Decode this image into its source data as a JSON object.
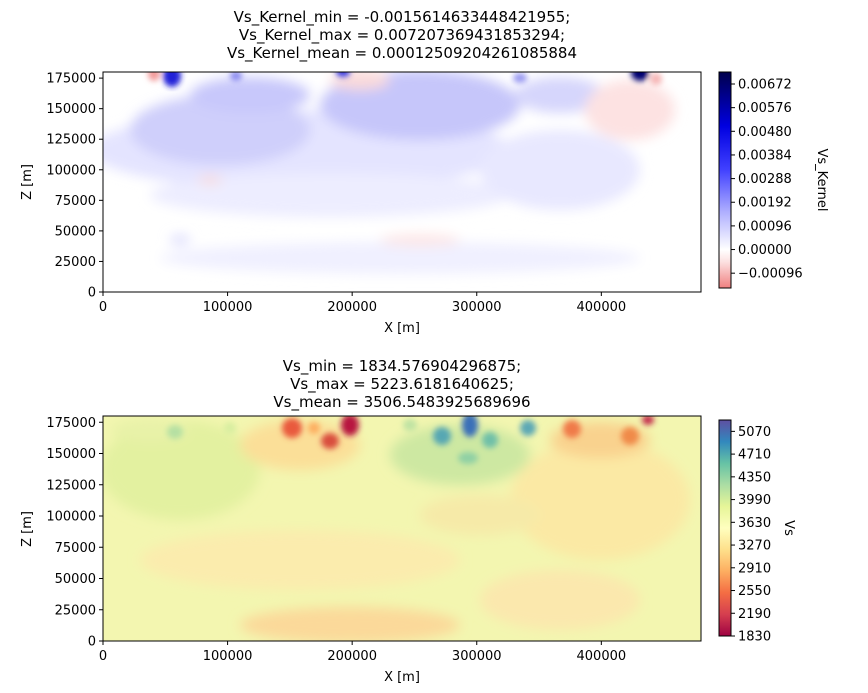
{
  "chart_data": [
    {
      "type": "heatmap",
      "title_lines": [
        "Vs_Kernel_min = -0.0015614633448421955;",
        "Vs_Kernel_max = 0.007207369431853294;",
        "Vs_Kernel_mean = 0.00012509204261085884"
      ],
      "xlabel": "X [m]",
      "ylabel": "Z [m]",
      "xlim": [
        0,
        480000
      ],
      "ylim": [
        0,
        180000
      ],
      "xticks": [
        0,
        100000,
        200000,
        300000,
        400000
      ],
      "xtick_labels": [
        "0",
        "100000",
        "200000",
        "300000",
        "400000"
      ],
      "yticks": [
        0,
        25000,
        50000,
        75000,
        100000,
        125000,
        150000,
        175000
      ],
      "ytick_labels": [
        "0",
        "25000",
        "50000",
        "75000",
        "100000",
        "125000",
        "150000",
        "175000"
      ],
      "colorbar": {
        "label": "Vs_Kernel",
        "colormap": "seismic_r",
        "range": [
          -0.0015614633448421955,
          0.007207369431853294
        ],
        "ticks": [
          -0.00096,
          0.0,
          0.00096,
          0.00192,
          0.00288,
          0.00384,
          0.0048,
          0.00576,
          0.00672
        ],
        "tick_labels": [
          "−0.00096",
          "0.00000",
          "0.00096",
          "0.00192",
          "0.00288",
          "0.00384",
          "0.00480",
          "0.00576",
          "0.00672"
        ]
      }
    },
    {
      "type": "heatmap",
      "title_lines": [
        "Vs_min = 1834.576904296875;",
        "Vs_max = 5223.6181640625;",
        "Vs_mean = 3506.5483925689696"
      ],
      "xlabel": "X [m]",
      "ylabel": "Z [m]",
      "xlim": [
        0,
        480000
      ],
      "ylim": [
        0,
        180000
      ],
      "xticks": [
        0,
        100000,
        200000,
        300000,
        400000
      ],
      "xtick_labels": [
        "0",
        "100000",
        "200000",
        "300000",
        "400000"
      ],
      "yticks": [
        0,
        25000,
        50000,
        75000,
        100000,
        125000,
        150000,
        175000
      ],
      "ytick_labels": [
        "0",
        "25000",
        "50000",
        "75000",
        "100000",
        "125000",
        "150000",
        "175000"
      ],
      "colorbar": {
        "label": "Vs",
        "colormap": "Spectral",
        "range": [
          1830,
          5250
        ],
        "ticks": [
          1830,
          2190,
          2550,
          2910,
          3270,
          3630,
          3990,
          4350,
          4710,
          5070
        ],
        "tick_labels": [
          "1830",
          "2190",
          "2550",
          "2910",
          "3270",
          "3630",
          "3990",
          "4350",
          "4710",
          "5070"
        ]
      }
    }
  ]
}
